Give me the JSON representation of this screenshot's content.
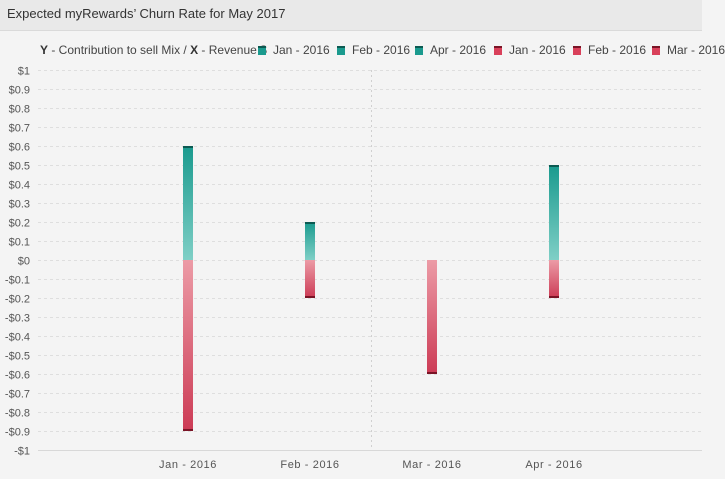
{
  "window": {
    "title": "Expected myRewards’ Churn Rate for May 2017"
  },
  "legend": {
    "y_key": "Y",
    "y_text": " - Contribution to sell Mix / ",
    "x_key": "X",
    "x_text": " - Revenue $",
    "entries": [
      {
        "label": "Jan - 2016",
        "color": "#1a9a8e"
      },
      {
        "label": "Feb - 2016",
        "color": "#1a9a8e"
      },
      {
        "label": "Apr - 2016",
        "color": "#1a9a8e"
      },
      {
        "label": "Jan - 2016",
        "color": "#d9405a"
      },
      {
        "label": "Feb - 2016",
        "color": "#d9405a"
      },
      {
        "label": "Mar - 2016",
        "color": "#d9405a"
      }
    ]
  },
  "colors": {
    "positive_top": "#1a9a8e",
    "positive_bottom": "#7fcfc6",
    "positive_cap": "#0c5a52",
    "negative_top": "#ec9ba6",
    "negative_bottom": "#cc3b55",
    "negative_cap": "#7a1426",
    "grid": "#dedede",
    "divider": "#d0d0d0"
  },
  "chart_data": {
    "type": "bar",
    "ylim": [
      -1,
      1
    ],
    "yticks": [
      "$1",
      "$0.9",
      "$0.8",
      "$0.7",
      "$0.6",
      "$0.5",
      "$0.4",
      "$0.3",
      "$0.2",
      "$0.1",
      "$0",
      "-$0.1",
      "-$0.2",
      "-$0.3",
      "-$0.4",
      "-$0.5",
      "-$0.6",
      "-$0.7",
      "-$0.8",
      "-$0.9",
      "-$1"
    ],
    "categories": [
      "Jan - 2016",
      "Feb - 2016",
      "Mar - 2016",
      "Apr - 2016"
    ],
    "grid": true,
    "legend_position": "top",
    "series": [
      {
        "name": "positive",
        "values": [
          0.6,
          0.2,
          0,
          0.5
        ]
      },
      {
        "name": "negative",
        "values": [
          -0.9,
          -0.2,
          -0.6,
          -0.2
        ]
      }
    ]
  }
}
